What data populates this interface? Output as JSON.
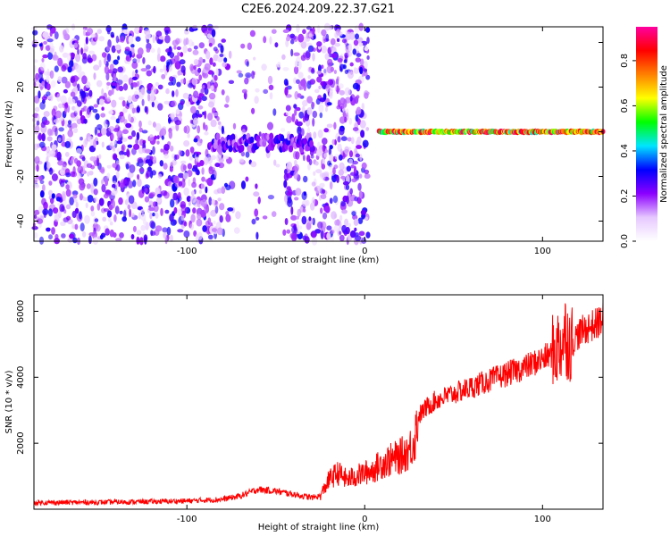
{
  "figure_title": "C2E6.2024.209.22.37.G21",
  "chart_data": [
    {
      "type": "heatmap",
      "title": "C2E6.2024.209.22.37.G21",
      "xlabel": "Height of straight line (km)",
      "ylabel": "Frequency (Hz)",
      "xlim": [
        -186,
        134
      ],
      "ylim": [
        -49,
        47
      ],
      "xticks": [
        -100,
        0,
        100
      ],
      "yticks": [
        -40,
        -20,
        0,
        20,
        40
      ],
      "colorbar": {
        "label": "Normalized spectral amplitude",
        "range": [
          0.0,
          0.95
        ],
        "ticks": [
          0.0,
          0.2,
          0.4,
          0.6,
          0.8
        ],
        "colormap": [
          "#ffffff",
          "#e6c8ff",
          "#8c00ff",
          "#0000ff",
          "#00e5ff",
          "#00ff00",
          "#ffff00",
          "#ff8000",
          "#ff0000",
          "#ff00a0"
        ]
      },
      "features": [
        {
          "label": "noise",
          "x_range": [
            -186,
            2
          ],
          "freq_range": [
            -49,
            47
          ],
          "amplitude": 0.05
        },
        {
          "label": "signal",
          "x_range": [
            -86,
            -30
          ],
          "freq_center": -5,
          "amplitude": 0.3
        },
        {
          "label": "signal",
          "x_range": [
            8,
            134
          ],
          "freq_center": 0,
          "amplitude": 0.95
        }
      ]
    },
    {
      "type": "line",
      "title": "",
      "xlabel": "Height of straight line (km)",
      "ylabel": "SNR (10 * v/v)",
      "xlim": [
        -186,
        134
      ],
      "ylim": [
        0,
        6500
      ],
      "xticks": [
        -100,
        0,
        100
      ],
      "yticks": [
        2000,
        4000,
        6000
      ],
      "color": "#ff0000",
      "series": [
        {
          "name": "",
          "x": [
            -186,
            -150,
            -120,
            -100,
            -80,
            -70,
            -60,
            -50,
            -40,
            -30,
            -25,
            -20,
            -15,
            -10,
            -5,
            0,
            5,
            10,
            15,
            20,
            25,
            28,
            30,
            35,
            40,
            50,
            60,
            70,
            80,
            90,
            100,
            105,
            110,
            113,
            116,
            120,
            125,
            130,
            134
          ],
          "y": [
            200,
            210,
            230,
            250,
            300,
            400,
            600,
            550,
            450,
            350,
            400,
            900,
            1100,
            900,
            1000,
            1100,
            1200,
            1400,
            1500,
            1600,
            1800,
            2100,
            2800,
            3100,
            3300,
            3500,
            3700,
            3900,
            4100,
            4300,
            4550,
            4700,
            5000,
            5300,
            5000,
            5300,
            5500,
            5600,
            5800
          ]
        }
      ]
    }
  ]
}
